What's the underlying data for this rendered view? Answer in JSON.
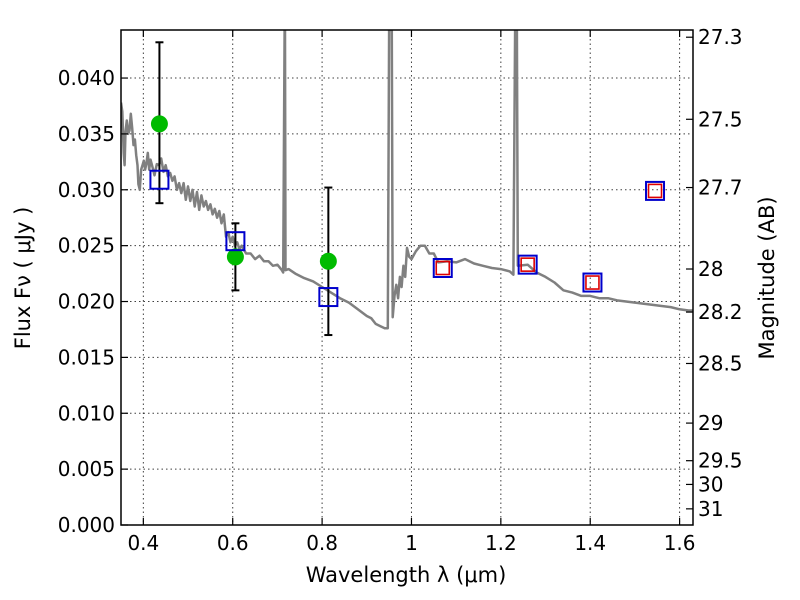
{
  "chart_data": {
    "type": "scatter",
    "xlabel": "Wavelength  λ (μm)",
    "ylabel": "Flux  Fν  ( μJy )",
    "y2label": "Magnitude (AB)",
    "xlim": [
      0.35,
      1.63
    ],
    "ylim": [
      0.0,
      0.0443
    ],
    "grid": true,
    "x_ticks": [
      {
        "value": 0.4,
        "label": "0.4"
      },
      {
        "value": 0.6,
        "label": "0.6"
      },
      {
        "value": 0.8,
        "label": "0.8"
      },
      {
        "value": 1.0,
        "label": "1"
      },
      {
        "value": 1.2,
        "label": "1.2"
      },
      {
        "value": 1.4,
        "label": "1.4"
      },
      {
        "value": 1.6,
        "label": "1.6"
      }
    ],
    "y_ticks": [
      {
        "value": 0.0,
        "label": "0.000"
      },
      {
        "value": 0.005,
        "label": "0.005"
      },
      {
        "value": 0.01,
        "label": "0.010"
      },
      {
        "value": 0.015,
        "label": "0.015"
      },
      {
        "value": 0.02,
        "label": "0.020"
      },
      {
        "value": 0.025,
        "label": "0.025"
      },
      {
        "value": 0.03,
        "label": "0.030"
      },
      {
        "value": 0.035,
        "label": "0.035"
      },
      {
        "value": 0.04,
        "label": "0.040"
      }
    ],
    "magnitude_ticks": [
      {
        "value": 27.3,
        "label": "27.3"
      },
      {
        "value": 27.5,
        "label": "27.5"
      },
      {
        "value": 27.7,
        "label": "27.7"
      },
      {
        "value": 28.0,
        "label": "28"
      },
      {
        "value": 28.2,
        "label": "28.2"
      },
      {
        "value": 28.5,
        "label": "28.5"
      },
      {
        "value": 29.0,
        "label": "29"
      },
      {
        "value": 29.5,
        "label": "29.5"
      },
      {
        "value": 30.0,
        "label": "30"
      },
      {
        "value": 31.0,
        "label": "31"
      }
    ],
    "series": [
      {
        "kind": "model-sed-line",
        "color": "#808080",
        "points": [
          [
            0.35,
            0.0378
          ],
          [
            0.353,
            0.037
          ],
          [
            0.356,
            0.0333
          ],
          [
            0.358,
            0.0322
          ],
          [
            0.36,
            0.0352
          ],
          [
            0.363,
            0.0362
          ],
          [
            0.366,
            0.035
          ],
          [
            0.369,
            0.0353
          ],
          [
            0.372,
            0.0368
          ],
          [
            0.375,
            0.0355
          ],
          [
            0.378,
            0.034
          ],
          [
            0.381,
            0.0345
          ],
          [
            0.384,
            0.0331
          ],
          [
            0.387,
            0.0322
          ],
          [
            0.389,
            0.0305
          ],
          [
            0.392,
            0.03
          ],
          [
            0.395,
            0.0318
          ],
          [
            0.398,
            0.0322
          ],
          [
            0.401,
            0.0326
          ],
          [
            0.404,
            0.0318
          ],
          [
            0.407,
            0.0324
          ],
          [
            0.41,
            0.0333
          ],
          [
            0.413,
            0.0318
          ],
          [
            0.416,
            0.0327
          ],
          [
            0.42,
            0.0321
          ],
          [
            0.425,
            0.0313
          ],
          [
            0.43,
            0.0323
          ],
          [
            0.435,
            0.0322
          ],
          [
            0.44,
            0.0328
          ],
          [
            0.445,
            0.0316
          ],
          [
            0.45,
            0.0322
          ],
          [
            0.455,
            0.0312
          ],
          [
            0.46,
            0.0315
          ],
          [
            0.465,
            0.0308
          ],
          [
            0.47,
            0.0312
          ],
          [
            0.475,
            0.03
          ],
          [
            0.48,
            0.0306
          ],
          [
            0.485,
            0.0297
          ],
          [
            0.49,
            0.0306
          ],
          [
            0.495,
            0.0291
          ],
          [
            0.5,
            0.0303
          ],
          [
            0.505,
            0.029
          ],
          [
            0.51,
            0.03
          ],
          [
            0.515,
            0.0285
          ],
          [
            0.52,
            0.0298
          ],
          [
            0.525,
            0.0282
          ],
          [
            0.53,
            0.0295
          ],
          [
            0.535,
            0.0285
          ],
          [
            0.54,
            0.029
          ],
          [
            0.545,
            0.0282
          ],
          [
            0.55,
            0.0287
          ],
          [
            0.555,
            0.0278
          ],
          [
            0.56,
            0.0283
          ],
          [
            0.565,
            0.0275
          ],
          [
            0.57,
            0.0281
          ],
          [
            0.575,
            0.027
          ],
          [
            0.58,
            0.0278
          ],
          [
            0.585,
            0.0258
          ],
          [
            0.59,
            0.0262
          ],
          [
            0.595,
            0.0253
          ],
          [
            0.6,
            0.0258
          ],
          [
            0.605,
            0.025
          ],
          [
            0.61,
            0.0253
          ],
          [
            0.615,
            0.0247
          ],
          [
            0.62,
            0.025
          ],
          [
            0.63,
            0.0243
          ],
          [
            0.64,
            0.0243
          ],
          [
            0.65,
            0.0238
          ],
          [
            0.66,
            0.0241
          ],
          [
            0.67,
            0.0236
          ],
          [
            0.68,
            0.0236
          ],
          [
            0.69,
            0.0232
          ],
          [
            0.7,
            0.0233
          ],
          [
            0.71,
            0.0228
          ],
          [
            0.713,
            0.0226
          ],
          [
            0.716,
            0.0443
          ],
          [
            0.717,
            0.0443
          ],
          [
            0.718,
            0.0228
          ],
          [
            0.725,
            0.0229
          ],
          [
            0.74,
            0.0225
          ],
          [
            0.76,
            0.0221
          ],
          [
            0.78,
            0.0218
          ],
          [
            0.8,
            0.0213
          ],
          [
            0.82,
            0.0208
          ],
          [
            0.84,
            0.0203
          ],
          [
            0.86,
            0.0199
          ],
          [
            0.88,
            0.0193
          ],
          [
            0.9,
            0.0187
          ],
          [
            0.91,
            0.0185
          ],
          [
            0.92,
            0.018
          ],
          [
            0.93,
            0.0178
          ],
          [
            0.94,
            0.0176
          ],
          [
            0.947,
            0.0176
          ],
          [
            0.95,
            0.0443
          ],
          [
            0.956,
            0.0443
          ],
          [
            0.958,
            0.0186
          ],
          [
            0.962,
            0.0205
          ],
          [
            0.966,
            0.0215
          ],
          [
            0.97,
            0.0203
          ],
          [
            0.974,
            0.0222
          ],
          [
            0.978,
            0.0213
          ],
          [
            0.982,
            0.0232
          ],
          [
            0.986,
            0.0222
          ],
          [
            0.99,
            0.0248
          ],
          [
            0.995,
            0.024
          ],
          [
            1.0,
            0.0238
          ],
          [
            1.01,
            0.0245
          ],
          [
            1.02,
            0.025
          ],
          [
            1.03,
            0.025
          ],
          [
            1.04,
            0.0243
          ],
          [
            1.05,
            0.0243
          ],
          [
            1.06,
            0.0235
          ],
          [
            1.08,
            0.0236
          ],
          [
            1.1,
            0.0235
          ],
          [
            1.12,
            0.0238
          ],
          [
            1.14,
            0.0234
          ],
          [
            1.16,
            0.0232
          ],
          [
            1.18,
            0.023
          ],
          [
            1.2,
            0.0229
          ],
          [
            1.22,
            0.0227
          ],
          [
            1.228,
            0.0224
          ],
          [
            1.232,
            0.0443
          ],
          [
            1.236,
            0.0443
          ],
          [
            1.238,
            0.0232
          ],
          [
            1.26,
            0.0233
          ],
          [
            1.28,
            0.0226
          ],
          [
            1.3,
            0.0222
          ],
          [
            1.32,
            0.0217
          ],
          [
            1.34,
            0.021
          ],
          [
            1.36,
            0.0208
          ],
          [
            1.38,
            0.0205
          ],
          [
            1.4,
            0.0205
          ],
          [
            1.42,
            0.0203
          ],
          [
            1.44,
            0.0203
          ],
          [
            1.46,
            0.0201
          ],
          [
            1.48,
            0.02
          ],
          [
            1.5,
            0.0199
          ],
          [
            1.52,
            0.0198
          ],
          [
            1.54,
            0.0197
          ],
          [
            1.56,
            0.0196
          ],
          [
            1.58,
            0.0195
          ],
          [
            1.6,
            0.0193
          ],
          [
            1.62,
            0.0192
          ],
          [
            1.63,
            0.0192
          ]
        ]
      },
      {
        "kind": "observed-flux-with-errors",
        "marker": "circle",
        "color": "#00bb00",
        "points": [
          {
            "x": 0.436,
            "y": 0.0359,
            "err_low": 0.0288,
            "err_high": 0.0432
          },
          {
            "x": 0.606,
            "y": 0.024,
            "err_low": 0.021,
            "err_high": 0.027
          },
          {
            "x": 0.814,
            "y": 0.0236,
            "err_low": 0.017,
            "err_high": 0.0302
          }
        ]
      },
      {
        "kind": "model-photometry",
        "marker": "square-open",
        "color": "#0000cc",
        "points": [
          {
            "x": 0.436,
            "y": 0.0309
          },
          {
            "x": 0.606,
            "y": 0.0254
          },
          {
            "x": 0.814,
            "y": 0.0204
          },
          {
            "x": 1.07,
            "y": 0.023
          },
          {
            "x": 1.26,
            "y": 0.0233
          },
          {
            "x": 1.405,
            "y": 0.0217
          },
          {
            "x": 1.545,
            "y": 0.0299
          }
        ]
      },
      {
        "kind": "nir-photometry",
        "marker": "square-open-small",
        "color": "#dd0000",
        "points": [
          {
            "x": 1.07,
            "y": 0.023
          },
          {
            "x": 1.26,
            "y": 0.0233
          },
          {
            "x": 1.405,
            "y": 0.0217
          },
          {
            "x": 1.545,
            "y": 0.0299
          }
        ]
      }
    ]
  }
}
